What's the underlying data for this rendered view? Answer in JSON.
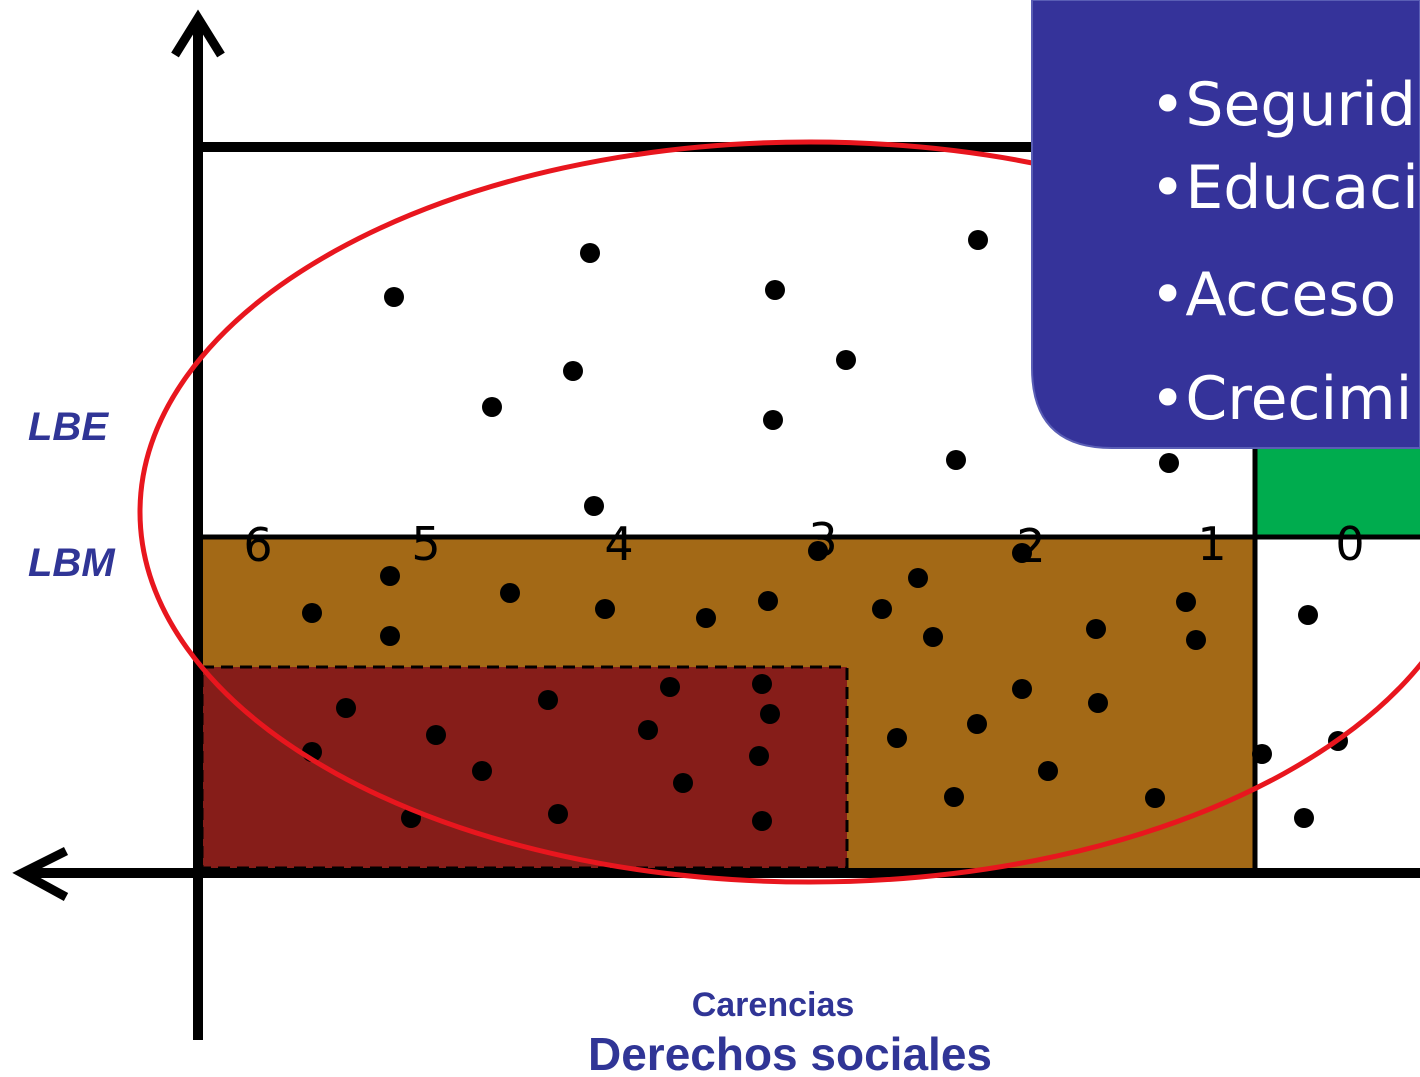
{
  "labels": {
    "lbe": "LBE",
    "lbm": "LBM",
    "carencias": "Carencias",
    "derechos": "Derechos sociales"
  },
  "ticks": [
    "6",
    "5",
    "4",
    "3",
    "2",
    "1",
    "0"
  ],
  "callout": {
    "items": [
      "•Segurid",
      "•Educaci",
      "•Acceso",
      "•Crecimi"
    ]
  },
  "colors": {
    "brown": "#A36916",
    "dark_red": "#861D19",
    "green": "#00AC4E",
    "callout_bg": "#35339A",
    "ellipse": "#E8161E",
    "text_blue": "#303596"
  }
}
